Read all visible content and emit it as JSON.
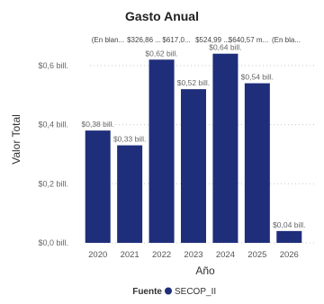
{
  "chart_data": {
    "type": "bar",
    "title": "Gasto Anual",
    "xlabel": "Año",
    "ylabel": "Valor Total",
    "categories": [
      "2020",
      "2021",
      "2022",
      "2023",
      "2024",
      "2025",
      "2026"
    ],
    "series": [
      {
        "name": "SECOP_II",
        "values": [
          0.38,
          0.33,
          0.62,
          0.52,
          0.64,
          0.54,
          0.04
        ],
        "labels": [
          "$0,38 bill.",
          "$0,33 bill.",
          "$0,62 bill.",
          "$0,52 bill.",
          "$0,64 bill.",
          "$0,54 bill.",
          "$0,04 bill."
        ],
        "color": "#1f2e7a"
      }
    ],
    "ylim": [
      0,
      0.7
    ],
    "yticks": [
      0,
      0.2,
      0.4,
      0.6
    ],
    "ytick_labels": [
      "$0,0 bill.",
      "$0,2 bill.",
      "$0,4 bill.",
      "$0,6 bill."
    ],
    "grid": true,
    "legend": {
      "title": "Fuente",
      "position": "bottom"
    },
    "top_labels": [
      "(En blan...",
      "$326,86 ...",
      "$617,0...",
      "$524,99 ...",
      "$640,57 m...",
      "(En bla..."
    ]
  }
}
